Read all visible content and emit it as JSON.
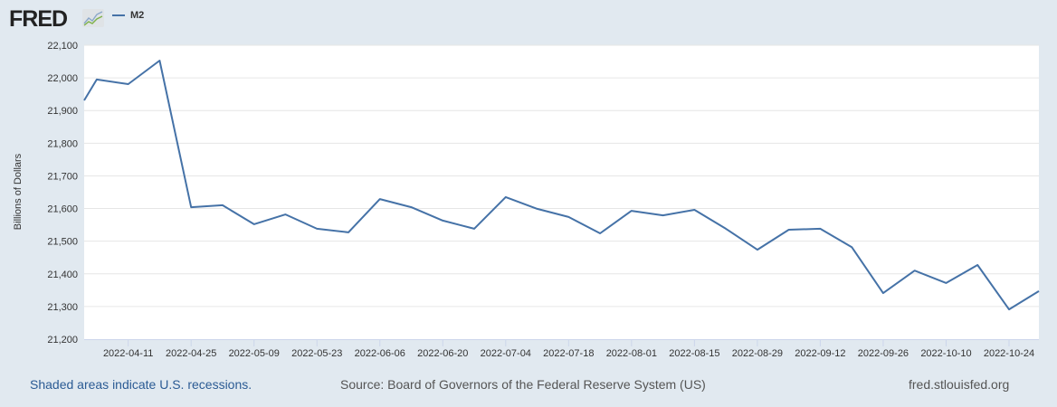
{
  "header": {
    "logo_text": "FRED",
    "logo_icon": "chart-line-icon",
    "legend_label": "M2",
    "series_color": "#4572a7"
  },
  "chart_data": {
    "type": "line",
    "title": "",
    "xlabel": "",
    "ylabel": "Billions of Dollars",
    "ylim": [
      21200,
      22100
    ],
    "yticks": [
      21200,
      21300,
      21400,
      21500,
      21600,
      21700,
      21800,
      21900,
      22000,
      22100
    ],
    "ytick_labels": [
      "21,200",
      "21,300",
      "21,400",
      "21,500",
      "21,600",
      "21,700",
      "21,800",
      "21,900",
      "22,000",
      "22,100"
    ],
    "xlim_weeks_from_2022_04_04": [
      -0.4,
      29.95
    ],
    "xtick_labels": [
      "2022-04-11",
      "2022-04-25",
      "2022-05-09",
      "2022-05-23",
      "2022-06-06",
      "2022-06-20",
      "2022-07-04",
      "2022-07-18",
      "2022-08-01",
      "2022-08-15",
      "2022-08-29",
      "2022-09-12",
      "2022-09-26",
      "2022-10-10",
      "2022-10-24"
    ],
    "xtick_weeks": [
      1,
      3,
      5,
      7,
      9,
      11,
      13,
      15,
      17,
      19,
      21,
      23,
      25,
      27,
      29
    ],
    "grid": true,
    "legend": "top-left",
    "series": [
      {
        "name": "M2",
        "x_weeks": [
          -0.4,
          0,
          1,
          2,
          3,
          4,
          5,
          6,
          7,
          8,
          9,
          10,
          11,
          12,
          13,
          14,
          15,
          16,
          17,
          18,
          19,
          20,
          21,
          22,
          23,
          24,
          25,
          26,
          27,
          28,
          29,
          29.95
        ],
        "values": [
          21931,
          21995,
          21981,
          22053,
          21604,
          21610,
          21552,
          21582,
          21538,
          21527,
          21629,
          21604,
          21563,
          21538,
          21635,
          21599,
          21574,
          21524,
          21593,
          21579,
          21596,
          21538,
          21474,
          21535,
          21538,
          21482,
          21341,
          21410,
          21372,
          21427,
          21291,
          21347
        ]
      }
    ]
  },
  "footer": {
    "note": "Shaded areas indicate U.S. recessions.",
    "source": "Source: Board of Governors of the Federal Reserve System (US)",
    "site": "fred.stlouisfed.org"
  }
}
